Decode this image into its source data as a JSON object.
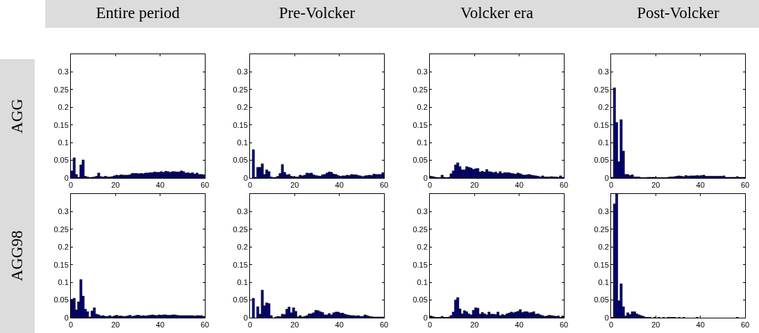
{
  "chart_data": [
    {
      "type": "histogram",
      "title": "Entire period",
      "ylabel": "AGG",
      "color": "#00007f",
      "xlim": [
        0,
        60
      ],
      "xticks": [
        0,
        20,
        40,
        60
      ],
      "ylim": [
        0,
        0.35
      ],
      "yticks": [
        0,
        0.05,
        0.1,
        0.15,
        0.2,
        0.25,
        0.3
      ],
      "grid": false,
      "bins": [
        0,
        1,
        2,
        3,
        4,
        5,
        6,
        7,
        8,
        9,
        10,
        11,
        12,
        13,
        14,
        15,
        16,
        17,
        18,
        19,
        20,
        21,
        22,
        23,
        24,
        25,
        26,
        27,
        28,
        29,
        30,
        31,
        32,
        33,
        34,
        35,
        36,
        37,
        38,
        39,
        40,
        41,
        42,
        43,
        44,
        45,
        46,
        47,
        48,
        49,
        50,
        51,
        52,
        53,
        54,
        55,
        56,
        57,
        58,
        59,
        60
      ],
      "values": [
        0.02,
        0.057,
        0.01,
        0.002,
        0.037,
        0.051,
        0.005,
        0.003,
        0.001,
        0.002,
        0.003,
        0.005,
        0.014,
        0.004,
        0.003,
        0.005,
        0.003,
        0.003,
        0.004,
        0.006,
        0.008,
        0.007,
        0.009,
        0.008,
        0.008,
        0.008,
        0.009,
        0.013,
        0.013,
        0.013,
        0.012,
        0.013,
        0.012,
        0.014,
        0.014,
        0.015,
        0.015,
        0.017,
        0.016,
        0.016,
        0.018,
        0.016,
        0.019,
        0.018,
        0.016,
        0.018,
        0.018,
        0.017,
        0.017,
        0.02,
        0.018,
        0.014,
        0.015,
        0.013,
        0.015,
        0.011,
        0.014,
        0.01,
        0.01,
        0.009
      ]
    },
    {
      "type": "histogram",
      "title": "Pre-Volcker",
      "color": "#00007f",
      "xlim": [
        0,
        60
      ],
      "xticks": [
        0,
        20,
        40,
        60
      ],
      "ylim": [
        0,
        0.35
      ],
      "yticks": [
        0,
        0.05,
        0.1,
        0.15,
        0.2,
        0.25,
        0.3
      ],
      "grid": false,
      "bins": [
        0,
        1,
        2,
        3,
        4,
        5,
        6,
        7,
        8,
        9,
        10,
        11,
        12,
        13,
        14,
        15,
        16,
        17,
        18,
        19,
        20,
        21,
        22,
        23,
        24,
        25,
        26,
        27,
        28,
        29,
        30,
        31,
        32,
        33,
        34,
        35,
        36,
        37,
        38,
        39,
        40,
        41,
        42,
        43,
        44,
        45,
        46,
        47,
        48,
        49,
        50,
        51,
        52,
        53,
        54,
        55,
        56,
        57,
        58,
        59,
        60
      ],
      "values": [
        0,
        0.08,
        0.002,
        0.03,
        0.03,
        0.04,
        0.01,
        0.023,
        0.018,
        0.003,
        0.001,
        0.002,
        0.005,
        0.013,
        0.038,
        0.016,
        0.009,
        0.01,
        0.005,
        0.004,
        0.003,
        0.003,
        0.008,
        0.006,
        0.008,
        0.014,
        0.013,
        0.014,
        0.009,
        0.007,
        0.006,
        0.005,
        0.009,
        0.01,
        0.014,
        0.017,
        0.016,
        0.011,
        0.01,
        0.007,
        0.005,
        0.006,
        0.006,
        0.008,
        0.007,
        0.01,
        0.009,
        0.009,
        0.007,
        0.006,
        0.004,
        0.006,
        0.007,
        0.008,
        0.007,
        0.011,
        0.01,
        0.01,
        0.01,
        0.015
      ]
    },
    {
      "type": "histogram",
      "title": "Volcker era",
      "color": "#00007f",
      "xlim": [
        0,
        60
      ],
      "xticks": [
        0,
        20,
        40,
        60
      ],
      "ylim": [
        0,
        0.35
      ],
      "yticks": [
        0,
        0.05,
        0.1,
        0.15,
        0.2,
        0.25,
        0.3
      ],
      "grid": false,
      "bins": [
        0,
        1,
        2,
        3,
        4,
        5,
        6,
        7,
        8,
        9,
        10,
        11,
        12,
        13,
        14,
        15,
        16,
        17,
        18,
        19,
        20,
        21,
        22,
        23,
        24,
        25,
        26,
        27,
        28,
        29,
        30,
        31,
        32,
        33,
        34,
        35,
        36,
        37,
        38,
        39,
        40,
        41,
        42,
        43,
        44,
        45,
        46,
        47,
        48,
        49,
        50,
        51,
        52,
        53,
        54,
        55,
        56,
        57,
        58,
        59,
        60
      ],
      "values": [
        0.005,
        0.004,
        0.002,
        0.001,
        0.001,
        0.008,
        0.002,
        0.001,
        0.002,
        0.012,
        0.02,
        0.037,
        0.043,
        0.032,
        0.023,
        0.023,
        0.032,
        0.03,
        0.028,
        0.024,
        0.026,
        0.027,
        0.017,
        0.019,
        0.017,
        0.024,
        0.018,
        0.017,
        0.015,
        0.017,
        0.013,
        0.018,
        0.013,
        0.015,
        0.015,
        0.015,
        0.013,
        0.012,
        0.011,
        0.014,
        0.012,
        0.009,
        0.008,
        0.009,
        0.01,
        0.008,
        0.007,
        0.006,
        0.005,
        0.003,
        0.006,
        0.003,
        0.003,
        0.003,
        0.004,
        0.003,
        0.003,
        0.002,
        0.006,
        0.002
      ]
    },
    {
      "type": "histogram",
      "title": "Post-Volcker",
      "color": "#00007f",
      "xlim": [
        0,
        60
      ],
      "xticks": [
        0,
        20,
        40,
        60
      ],
      "ylim": [
        0,
        0.35
      ],
      "yticks": [
        0,
        0.05,
        0.1,
        0.15,
        0.2,
        0.25,
        0.3
      ],
      "grid": false,
      "bins": [
        0,
        1,
        2,
        3,
        4,
        5,
        6,
        7,
        8,
        9,
        10,
        11,
        12,
        13,
        14,
        15,
        16,
        17,
        18,
        19,
        20,
        21,
        22,
        23,
        24,
        25,
        26,
        27,
        28,
        29,
        30,
        31,
        32,
        33,
        34,
        35,
        36,
        37,
        38,
        39,
        40,
        41,
        42,
        43,
        44,
        45,
        46,
        47,
        48,
        49,
        50,
        51,
        52,
        53,
        54,
        55,
        56,
        57,
        58,
        59,
        60
      ],
      "values": [
        0.002,
        0.255,
        0.157,
        0.046,
        0.165,
        0.076,
        0.01,
        0.01,
        0.007,
        0.009,
        0.003,
        0.003,
        0.003,
        0.001,
        0.001,
        0.001,
        0.002,
        0.002,
        0.002,
        0.002,
        0.001,
        0.001,
        0.001,
        0.001,
        0.001,
        0.002,
        0.003,
        0.003,
        0.004,
        0.005,
        0.006,
        0.005,
        0.004,
        0.007,
        0.005,
        0.006,
        0.006,
        0.006,
        0.007,
        0.006,
        0.007,
        0.008,
        0.005,
        0.005,
        0.005,
        0.005,
        0.005,
        0.005,
        0.005,
        0.005,
        0.006,
        0.002,
        0.002,
        0.002,
        0.002,
        0.002,
        0.004,
        0.002,
        0.002,
        0.002
      ]
    },
    {
      "type": "histogram",
      "ylabel": "AGG98",
      "color": "#00007f",
      "xlim": [
        0,
        60
      ],
      "xticks": [
        0,
        20,
        40,
        60
      ],
      "ylim": [
        0,
        0.35
      ],
      "yticks": [
        0,
        0.05,
        0.1,
        0.15,
        0.2,
        0.25,
        0.3
      ],
      "grid": false,
      "bins": [
        0,
        1,
        2,
        3,
        4,
        5,
        6,
        7,
        8,
        9,
        10,
        11,
        12,
        13,
        14,
        15,
        16,
        17,
        18,
        19,
        20,
        21,
        22,
        23,
        24,
        25,
        26,
        27,
        28,
        29,
        30,
        31,
        32,
        33,
        34,
        35,
        36,
        37,
        38,
        39,
        40,
        41,
        42,
        43,
        44,
        45,
        46,
        47,
        48,
        49,
        50,
        51,
        52,
        53,
        54,
        55,
        56,
        57,
        58,
        59,
        60
      ],
      "values": [
        0.052,
        0.055,
        0.022,
        0.045,
        0.108,
        0.061,
        0.024,
        0.017,
        0.002,
        0.019,
        0.028,
        0.01,
        0.008,
        0.005,
        0.006,
        0.004,
        0.004,
        0.006,
        0.003,
        0.005,
        0.007,
        0.005,
        0.005,
        0.004,
        0.004,
        0.005,
        0.007,
        0.004,
        0.005,
        0.007,
        0.007,
        0.005,
        0.006,
        0.005,
        0.006,
        0.007,
        0.008,
        0.007,
        0.006,
        0.008,
        0.007,
        0.008,
        0.008,
        0.007,
        0.007,
        0.008,
        0.008,
        0.007,
        0.006,
        0.006,
        0.006,
        0.006,
        0.006,
        0.006,
        0.006,
        0.005,
        0.006,
        0.006,
        0.006,
        0.004
      ]
    },
    {
      "type": "histogram",
      "color": "#00007f",
      "xlim": [
        0,
        60
      ],
      "xticks": [
        0,
        20,
        40,
        60
      ],
      "ylim": [
        0,
        0.35
      ],
      "yticks": [
        0,
        0.05,
        0.1,
        0.15,
        0.2,
        0.25,
        0.3
      ],
      "grid": false,
      "bins": [
        0,
        1,
        2,
        3,
        4,
        5,
        6,
        7,
        8,
        9,
        10,
        11,
        12,
        13,
        14,
        15,
        16,
        17,
        18,
        19,
        20,
        21,
        22,
        23,
        24,
        25,
        26,
        27,
        28,
        29,
        30,
        31,
        32,
        33,
        34,
        35,
        36,
        37,
        38,
        39,
        40,
        41,
        42,
        43,
        44,
        45,
        46,
        47,
        48,
        49,
        50,
        51,
        52,
        53,
        54,
        55,
        56,
        57,
        58,
        59,
        60
      ],
      "values": [
        0,
        0.055,
        0,
        0.031,
        0.01,
        0.078,
        0.034,
        0.042,
        0.04,
        0.006,
        0,
        0.002,
        0.004,
        0.003,
        0.01,
        0.009,
        0.024,
        0.03,
        0.014,
        0.028,
        0.018,
        0.003,
        0.006,
        0.002,
        0.004,
        0.006,
        0.011,
        0.011,
        0.014,
        0.021,
        0.02,
        0.017,
        0.015,
        0.008,
        0.008,
        0.012,
        0.008,
        0.014,
        0.016,
        0.016,
        0.013,
        0.013,
        0.01,
        0.008,
        0.007,
        0.006,
        0.006,
        0.005,
        0.006,
        0.004,
        0.004,
        0.008,
        0.006,
        0.004,
        0.003,
        0.002,
        0.002,
        0.002,
        0.002,
        0.002
      ]
    },
    {
      "type": "histogram",
      "color": "#00007f",
      "xlim": [
        0,
        60
      ],
      "xticks": [
        0,
        20,
        40,
        60
      ],
      "ylim": [
        0,
        0.35
      ],
      "yticks": [
        0,
        0.05,
        0.1,
        0.15,
        0.2,
        0.25,
        0.3
      ],
      "grid": false,
      "bins": [
        0,
        1,
        2,
        3,
        4,
        5,
        6,
        7,
        8,
        9,
        10,
        11,
        12,
        13,
        14,
        15,
        16,
        17,
        18,
        19,
        20,
        21,
        22,
        23,
        24,
        25,
        26,
        27,
        28,
        29,
        30,
        31,
        32,
        33,
        34,
        35,
        36,
        37,
        38,
        39,
        40,
        41,
        42,
        43,
        44,
        45,
        46,
        47,
        48,
        49,
        50,
        51,
        52,
        53,
        54,
        55,
        56,
        57,
        58,
        59,
        60
      ],
      "values": [
        0.005,
        0.003,
        0.001,
        0.001,
        0.001,
        0.004,
        0.001,
        0.001,
        0.002,
        0.006,
        0.016,
        0.05,
        0.057,
        0.025,
        0.011,
        0.02,
        0.017,
        0.011,
        0.008,
        0.021,
        0.028,
        0.027,
        0.01,
        0.015,
        0.011,
        0.008,
        0.016,
        0.01,
        0.01,
        0.009,
        0.016,
        0.006,
        0.009,
        0.007,
        0.011,
        0.013,
        0.016,
        0.014,
        0.016,
        0.018,
        0.023,
        0.015,
        0.017,
        0.017,
        0.014,
        0.015,
        0.017,
        0.01,
        0.011,
        0.008,
        0.006,
        0.004,
        0.005,
        0.007,
        0.006,
        0.005,
        0.004,
        0.005,
        0.001,
        0.005
      ]
    },
    {
      "type": "histogram",
      "color": "#00007f",
      "xlim": [
        0,
        60
      ],
      "xticks": [
        0,
        20,
        40,
        60
      ],
      "ylim": [
        0,
        0.35
      ],
      "yticks": [
        0,
        0.05,
        0.1,
        0.15,
        0.2,
        0.25,
        0.3
      ],
      "grid": false,
      "bins": [
        0,
        1,
        2,
        3,
        4,
        5,
        6,
        7,
        8,
        9,
        10,
        11,
        12,
        13,
        14,
        15,
        16,
        17,
        18,
        19,
        20,
        21,
        22,
        23,
        24,
        25,
        26,
        27,
        28,
        29,
        30,
        31,
        32,
        33,
        34,
        35,
        36,
        37,
        38,
        39,
        40,
        41,
        42,
        43,
        44,
        45,
        46,
        47,
        48,
        49,
        50,
        51,
        52,
        53,
        54,
        55,
        56,
        57,
        58,
        59,
        60
      ],
      "values": [
        0.001,
        0.322,
        0.35,
        0.048,
        0.096,
        0.031,
        0.005,
        0.014,
        0.009,
        0.017,
        0.017,
        0.011,
        0.008,
        0.006,
        0.004,
        0.001,
        0.001,
        0.001,
        0,
        0.001,
        0,
        0.001,
        0,
        0.001,
        0,
        0.001,
        0.001,
        0.001,
        0.001,
        0,
        0.001,
        0,
        0.001,
        0,
        0,
        0,
        0,
        0,
        0.001,
        0,
        0,
        0,
        0,
        0,
        0,
        0,
        0,
        0,
        0,
        0,
        0,
        0,
        0,
        0,
        0,
        0,
        0.001,
        0,
        0,
        0
      ]
    }
  ]
}
